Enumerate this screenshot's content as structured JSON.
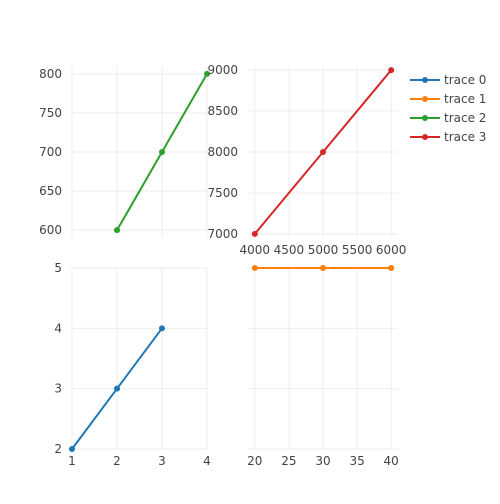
{
  "chart_data": [
    {
      "type": "line",
      "subplot": "top-left",
      "x": [
        2,
        3,
        4
      ],
      "y": [
        600,
        700,
        800
      ],
      "series_name": "trace 2",
      "color": "#2ca02c",
      "xlim": [
        1,
        4
      ],
      "ylim": [
        590,
        810
      ],
      "xticks": [],
      "yticks": [
        600,
        650,
        700,
        750,
        800
      ],
      "xgrid": [
        1,
        2,
        3,
        4
      ],
      "grid": true
    },
    {
      "type": "line",
      "subplot": "top-right",
      "x": [
        4000,
        5000,
        6000
      ],
      "y": [
        7000,
        8000,
        9000
      ],
      "series_name": "trace 3",
      "color": "#d62728",
      "xlim": [
        3900,
        6100
      ],
      "ylim": [
        6950,
        9050
      ],
      "xticks": [
        4000,
        4500,
        5000,
        5500,
        6000
      ],
      "yticks": [
        7000,
        7500,
        8000,
        8500,
        9000
      ],
      "grid": true
    },
    {
      "type": "line",
      "subplot": "bottom-left",
      "x": [
        1,
        2,
        3
      ],
      "y": [
        2,
        3,
        4
      ],
      "series_name": "trace 0",
      "color": "#1f77b4",
      "xlim": [
        1,
        4
      ],
      "ylim": [
        2,
        5
      ],
      "xticks": [
        1,
        2,
        3,
        4
      ],
      "yticks": [
        2,
        3,
        4,
        5
      ],
      "grid": true
    },
    {
      "type": "line",
      "subplot": "bottom-right",
      "x": [
        20,
        30,
        40
      ],
      "y": [
        5,
        5,
        5
      ],
      "series_name": "trace 1",
      "color": "#ff7f0e",
      "xlim": [
        19,
        41
      ],
      "ylim": [
        2,
        5
      ],
      "xticks": [
        20,
        25,
        30,
        35,
        40
      ],
      "yticks": [],
      "ygrid": [
        2,
        3,
        4,
        5
      ],
      "grid": true
    }
  ],
  "legend": {
    "placement": "top-right",
    "items": [
      {
        "name": "trace 0",
        "color": "#1f77b4"
      },
      {
        "name": "trace 1",
        "color": "#ff7f0e"
      },
      {
        "name": "trace 2",
        "color": "#2ca02c"
      },
      {
        "name": "trace 3",
        "color": "#d62728"
      }
    ]
  }
}
